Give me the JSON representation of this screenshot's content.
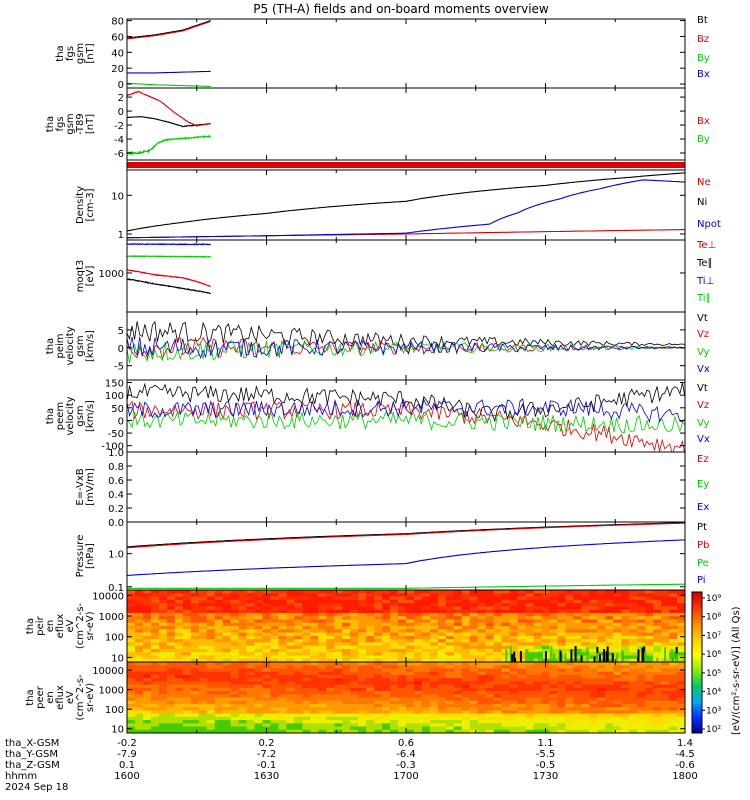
{
  "title": "P5 (TH-A) fields and on-board moments overview",
  "colors": {
    "black": "#000000",
    "red": "#dd0000",
    "green": "#00cc00",
    "blue": "#0000dd"
  },
  "footer": {
    "rows": [
      {
        "label": "tha_X-GSM",
        "values": [
          "-0.2",
          "0.2",
          "0.6",
          "1.1",
          "1.4"
        ]
      },
      {
        "label": "tha_Y-GSM",
        "values": [
          "-7.9",
          "-7.2",
          "-6.4",
          "-5.5",
          "-4.5"
        ]
      },
      {
        "label": "tha_Z-GSM",
        "values": [
          "0.1",
          "-0.1",
          "-0.3",
          "-0.5",
          "-0.6"
        ]
      },
      {
        "label": "hhmm",
        "values": [
          "1600",
          "1630",
          "1700",
          "1730",
          "1800"
        ]
      }
    ],
    "date": "2024 Sep 18"
  },
  "colorbar": {
    "label": "[eV/(cm²-s-sr-eV)] (All Qs)",
    "ticks": [
      "10⁹",
      "10⁸",
      "10⁷",
      "10⁶",
      "10⁵",
      "10⁴",
      "10³",
      "10²"
    ]
  },
  "chart_data": [
    {
      "type": "line",
      "id": "fgs_gsm",
      "ylabel": [
        "tha",
        "fgs",
        "gsm",
        "[nT]"
      ],
      "yticks": [
        "80",
        "60",
        "40",
        "20",
        "0"
      ],
      "ylim": [
        -5,
        82
      ],
      "time_range": [
        1600,
        1800
      ],
      "data_end": 1630,
      "series": [
        {
          "name": "Bt",
          "color": "black",
          "points": [
            [
              1600,
              58
            ],
            [
              1610,
              62
            ],
            [
              1620,
              68
            ],
            [
              1630,
              80
            ]
          ]
        },
        {
          "name": "Bz",
          "color": "red",
          "points": [
            [
              1600,
              57
            ],
            [
              1610,
              61
            ],
            [
              1620,
              67
            ],
            [
              1630,
              79
            ]
          ]
        },
        {
          "name": "By",
          "color": "green",
          "points": [
            [
              1600,
              1
            ],
            [
              1610,
              -1
            ],
            [
              1620,
              -2
            ],
            [
              1630,
              -3
            ]
          ]
        },
        {
          "name": "Bx",
          "color": "blue",
          "points": [
            [
              1600,
              14
            ],
            [
              1610,
              14
            ],
            [
              1620,
              15
            ],
            [
              1630,
              16
            ]
          ]
        }
      ]
    },
    {
      "type": "line",
      "id": "fgs_gsm_t89",
      "ylabel": [
        "tha",
        "fgs",
        "gsm",
        "-T89",
        "[nT]"
      ],
      "yticks": [
        "2",
        "0",
        "-2",
        "-4",
        "-6"
      ],
      "ylim": [
        -7,
        3.3
      ],
      "time_range": [
        1600,
        1800
      ],
      "data_end": 1630,
      "series": [
        {
          "name": "Bz",
          "color": "black",
          "legend_hidden": true,
          "points": [
            [
              1600,
              -0.9
            ],
            [
              1605,
              -0.8
            ],
            [
              1610,
              -1.1
            ],
            [
              1615,
              -1.6
            ],
            [
              1620,
              -2.2
            ],
            [
              1625,
              -2.0
            ],
            [
              1630,
              -1.8
            ]
          ]
        },
        {
          "name": "Bx",
          "color": "red",
          "points": [
            [
              1600,
              2.2
            ],
            [
              1604,
              2.8
            ],
            [
              1608,
              2.1
            ],
            [
              1612,
              1.4
            ],
            [
              1617,
              -0.2
            ],
            [
              1622,
              -1.6
            ],
            [
              1625,
              -2.1
            ],
            [
              1630,
              -1.8
            ]
          ]
        },
        {
          "name": "By",
          "color": "green",
          "points": [
            [
              1600,
              -6.0
            ],
            [
              1604,
              -6.0
            ],
            [
              1608,
              -5.7
            ],
            [
              1611,
              -4.6
            ],
            [
              1614,
              -4.1
            ],
            [
              1620,
              -3.9
            ],
            [
              1630,
              -3.6
            ]
          ]
        }
      ]
    },
    {
      "type": "bar",
      "id": "flag_bar",
      "color": "red"
    },
    {
      "type": "line",
      "id": "density",
      "scale": "log",
      "ylabel": [
        "Density",
        "[cm-3]"
      ],
      "yticks": [
        "10",
        "1"
      ],
      "ylim": [
        0.7,
        45
      ],
      "time_range": [
        1600,
        1800
      ],
      "series": [
        {
          "name": "Ne",
          "color": "red",
          "points": [
            [
              1600,
              0.8
            ],
            [
              1650,
              0.9
            ],
            [
              1700,
              1.0
            ],
            [
              1750,
              1.15
            ],
            [
              1800,
              1.3
            ]
          ]
        },
        {
          "name": "Ni",
          "color": "black",
          "points": [
            [
              1600,
              1.2
            ],
            [
              1620,
              2.0
            ],
            [
              1650,
              3.4
            ],
            [
              1700,
              7
            ],
            [
              1750,
              18
            ],
            [
              1780,
              29
            ],
            [
              1800,
              38
            ]
          ]
        },
        {
          "name": "Npot",
          "color": "blue",
          "points": [
            [
              1600,
              0.8
            ],
            [
              1650,
              0.9
            ],
            [
              1700,
              1.05
            ],
            [
              1730,
              1.8
            ],
            [
              1740,
              3.5
            ],
            [
              1755,
              8
            ],
            [
              1770,
              15
            ],
            [
              1785,
              25
            ],
            [
              1800,
              22
            ]
          ]
        }
      ]
    },
    {
      "type": "line",
      "id": "temperature",
      "scale": "log",
      "ylabel": [
        "moqt3",
        "[eV]"
      ],
      "yticks": [
        "1000"
      ],
      "ylim": [
        100,
        7000
      ],
      "time_range": [
        1600,
        1800
      ],
      "data_end": 1630,
      "series": [
        {
          "name": "Te⊥",
          "color": "red",
          "points": [
            [
              1600,
              1200
            ],
            [
              1610,
              900
            ],
            [
              1620,
              750
            ],
            [
              1630,
              450
            ]
          ]
        },
        {
          "name": "Te∥",
          "color": "black",
          "points": [
            [
              1600,
              700
            ],
            [
              1610,
              520
            ],
            [
              1620,
              400
            ],
            [
              1630,
              300
            ]
          ]
        },
        {
          "name": "Ti⊥",
          "color": "blue",
          "points": [
            [
              1600,
              5500
            ],
            [
              1630,
              5400
            ]
          ]
        },
        {
          "name": "Ti∥",
          "color": "green",
          "points": [
            [
              1600,
              2700
            ],
            [
              1630,
              2600
            ]
          ]
        }
      ]
    },
    {
      "type": "line",
      "id": "peim_velocity",
      "ylabel": [
        "tha",
        "peim",
        "velocity",
        "gsm",
        "[km/s]"
      ],
      "yticks": [
        "5",
        "0",
        "-5"
      ],
      "ylim": [
        -9,
        10
      ],
      "time_range": [
        1600,
        1800
      ],
      "series": [
        {
          "name": "Vt",
          "color": "black",
          "points": [
            [
              1600,
              5
            ],
            [
              1700,
              2
            ],
            [
              1800,
              0.9
            ]
          ]
        },
        {
          "name": "Vz",
          "color": "red",
          "points": [
            [
              1600,
              0
            ],
            [
              1700,
              0
            ],
            [
              1800,
              0
            ]
          ]
        },
        {
          "name": "Vy",
          "color": "green",
          "points": [
            [
              1600,
              -1
            ],
            [
              1700,
              0
            ],
            [
              1800,
              0
            ]
          ]
        },
        {
          "name": "Vx",
          "color": "blue",
          "points": [
            [
              1600,
              0
            ],
            [
              1800,
              0
            ]
          ]
        }
      ]
    },
    {
      "type": "line",
      "id": "peem_velocity",
      "ylabel": [
        "tha",
        "peem",
        "velocity",
        "gsm",
        "[km/s]"
      ],
      "yticks": [
        "150",
        "100",
        "50",
        "0",
        "-50",
        "-100"
      ],
      "ylim": [
        -125,
        160
      ],
      "time_range": [
        1600,
        1800
      ],
      "series": [
        {
          "name": "Vt",
          "color": "black",
          "points": [
            [
              1600,
              110
            ],
            [
              1650,
              100
            ],
            [
              1700,
              85
            ],
            [
              1730,
              25
            ],
            [
              1760,
              55
            ],
            [
              1780,
              90
            ],
            [
              1800,
              120
            ]
          ]
        },
        {
          "name": "Vz",
          "color": "red",
          "points": [
            [
              1600,
              40
            ],
            [
              1700,
              40
            ],
            [
              1740,
              0
            ],
            [
              1770,
              -50
            ],
            [
              1800,
              -110
            ]
          ]
        },
        {
          "name": "Vy",
          "color": "green",
          "points": [
            [
              1600,
              0
            ],
            [
              1700,
              0
            ],
            [
              1800,
              -20
            ]
          ]
        },
        {
          "name": "Vx",
          "color": "blue",
          "points": [
            [
              1600,
              40
            ],
            [
              1700,
              50
            ],
            [
              1760,
              50
            ],
            [
              1800,
              20
            ]
          ]
        }
      ]
    },
    {
      "type": "line",
      "id": "efield",
      "ylabel": [
        "E=-VxB",
        "[mV/m]"
      ],
      "yticks": [
        "1.0",
        "0.8",
        "0.6",
        "0.4",
        "0.2",
        "0.0"
      ],
      "ylim": [
        0,
        1
      ],
      "time_range": [
        1600,
        1800
      ],
      "series": [
        {
          "name": "Ez",
          "color": "red",
          "points": []
        },
        {
          "name": "Ey",
          "color": "green",
          "points": []
        },
        {
          "name": "Ex",
          "color": "blue",
          "points": []
        }
      ]
    },
    {
      "type": "line",
      "id": "pressure",
      "scale": "log",
      "ylabel": [
        "Pressure",
        "[nPa]"
      ],
      "yticks": [
        "1.0",
        "0.1"
      ],
      "ylim": [
        0.08,
        9
      ],
      "time_range": [
        1600,
        1800
      ],
      "series": [
        {
          "name": "Pt",
          "color": "black",
          "points": [
            [
              1600,
              1.6
            ],
            [
              1700,
              4.0
            ],
            [
              1800,
              8.6
            ]
          ]
        },
        {
          "name": "Pb",
          "color": "red",
          "points": [
            [
              1600,
              1.5
            ],
            [
              1700,
              3.8
            ],
            [
              1800,
              8.3
            ]
          ]
        },
        {
          "name": "Pe",
          "color": "green",
          "points": [
            [
              1600,
              0.09
            ],
            [
              1700,
              0.09
            ],
            [
              1800,
              0.12
            ]
          ]
        },
        {
          "name": "Pi",
          "color": "blue",
          "points": [
            [
              1600,
              0.22
            ],
            [
              1700,
              0.5
            ],
            [
              1800,
              2.6
            ]
          ]
        }
      ]
    },
    {
      "type": "heatmap",
      "id": "peir_spectrogram",
      "ylabel": [
        "tha",
        "peir",
        "en",
        "eflux",
        "eV",
        "(cm^2-s-",
        "sr-eV)"
      ],
      "yticks": [
        "10000",
        "1000",
        "100",
        "10"
      ],
      "scale": "log",
      "ylim": [
        6,
        18000
      ],
      "time_range": [
        1600,
        1800
      ]
    },
    {
      "type": "heatmap",
      "id": "peer_spectrogram",
      "ylabel": [
        "tha",
        "peer",
        "en",
        "eflux",
        "eV",
        "(cm^2-s-",
        "sr-eV)"
      ],
      "yticks": [
        "10000",
        "1000",
        "100",
        "10"
      ],
      "scale": "log",
      "ylim": [
        6,
        26000
      ],
      "time_range": [
        1600,
        1800
      ]
    }
  ]
}
